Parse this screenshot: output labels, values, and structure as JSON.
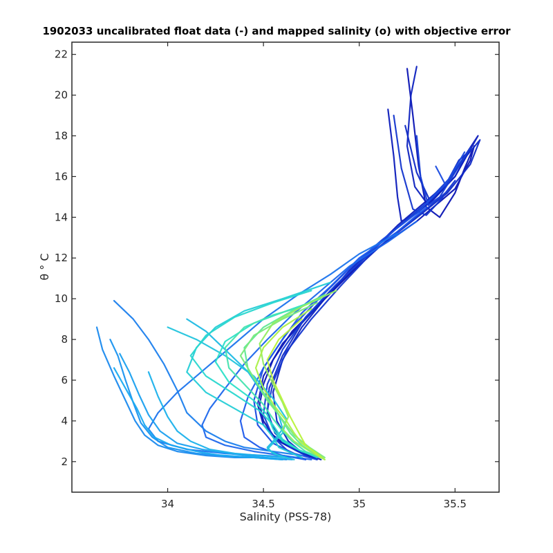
{
  "chart_data": {
    "type": "line",
    "title": "1902033 uncalibrated float data (-) and mapped salinity (o) with objective error",
    "xlabel": "Salinity (PSS-78)",
    "ylabel": "θ ° C",
    "xlim": [
      33.5,
      35.73
    ],
    "ylim": [
      0.5,
      22.6
    ],
    "xticks": [
      34,
      34.5,
      35,
      35.5
    ],
    "xtick_labels": [
      "34",
      "34.5",
      "35",
      "35.5"
    ],
    "yticks": [
      2,
      4,
      6,
      8,
      10,
      12,
      14,
      16,
      18,
      20,
      22
    ],
    "ytick_labels": [
      "2",
      "4",
      "6",
      "8",
      "10",
      "12",
      "14",
      "16",
      "18",
      "20",
      "22"
    ],
    "grid": false,
    "legend": "none",
    "colors": {
      "axis": "#262626",
      "early_profiles": "#0a14b4",
      "mid_profiles": "#1e78e6",
      "late_profiles": "#19aaf0",
      "cyan_profiles": "#2ce0e8",
      "final_profiles": "#b4f046"
    },
    "series": [
      {
        "group": 0.0,
        "x": [
          35.25,
          35.28,
          35.31,
          35.35,
          35.42,
          35.5,
          35.55,
          35.6,
          35.58,
          35.5,
          35.4,
          35.3,
          35.1,
          34.95,
          34.8,
          34.65,
          34.55,
          34.5,
          34.48,
          34.5,
          34.55,
          34.62,
          34.7,
          34.78
        ],
        "y": [
          21.3,
          19.0,
          16.5,
          14.5,
          14.0,
          15.2,
          16.4,
          17.5,
          16.8,
          15.4,
          14.6,
          13.8,
          12.5,
          11.2,
          9.8,
          8.4,
          7.0,
          5.8,
          4.8,
          4.0,
          3.3,
          2.8,
          2.4,
          2.1
        ]
      },
      {
        "group": 0.03,
        "x": [
          35.15,
          35.18,
          35.2,
          35.22,
          35.3,
          35.4,
          35.5,
          35.62,
          35.55,
          35.45,
          35.35,
          35.2,
          35.05,
          34.9,
          34.75,
          34.6,
          34.5,
          34.47,
          34.5,
          34.58,
          34.68,
          34.8
        ],
        "y": [
          19.3,
          17.0,
          15.0,
          13.8,
          14.2,
          15.0,
          16.0,
          18.0,
          17.0,
          15.6,
          14.8,
          13.6,
          12.2,
          10.8,
          9.3,
          7.8,
          6.2,
          4.8,
          3.8,
          3.0,
          2.5,
          2.1
        ]
      },
      {
        "group": 0.06,
        "x": [
          35.3,
          35.27,
          35.25,
          35.29,
          35.36,
          35.44,
          35.52,
          35.57,
          35.5,
          35.38,
          35.25,
          35.1,
          34.95,
          34.82,
          34.7,
          34.6,
          34.55,
          34.57,
          34.63,
          34.72
        ],
        "y": [
          21.4,
          20.0,
          17.5,
          15.5,
          14.6,
          15.4,
          16.8,
          17.2,
          16.0,
          14.9,
          13.9,
          12.7,
          11.4,
          10.0,
          8.6,
          7.0,
          5.4,
          4.0,
          3.0,
          2.3
        ]
      },
      {
        "group": 0.1,
        "x": [
          35.24,
          35.3,
          35.37,
          35.45,
          35.55,
          35.63,
          35.58,
          35.46,
          35.33,
          35.18,
          35.0,
          34.85,
          34.7,
          34.6,
          34.53,
          34.52,
          34.58,
          34.67,
          34.8
        ],
        "y": [
          18.5,
          16.2,
          14.8,
          15.6,
          16.9,
          17.8,
          16.6,
          15.2,
          14.2,
          13.1,
          11.8,
          10.4,
          8.8,
          7.2,
          5.6,
          4.3,
          3.2,
          2.6,
          2.2
        ]
      },
      {
        "group": 0.14,
        "x": [
          35.18,
          35.22,
          35.28,
          35.35,
          35.42,
          35.5,
          35.45,
          35.35,
          35.2,
          35.05,
          34.9,
          34.75,
          34.62,
          34.55,
          34.52,
          34.56,
          34.64,
          34.74
        ],
        "y": [
          19.0,
          16.4,
          14.4,
          14.1,
          14.8,
          15.8,
          15.2,
          14.4,
          13.3,
          12.1,
          10.6,
          9.0,
          7.4,
          5.9,
          4.5,
          3.4,
          2.7,
          2.2
        ]
      },
      {
        "group": 0.18,
        "x": [
          35.3,
          35.32,
          35.36,
          35.42,
          35.5,
          35.58,
          35.48,
          35.35,
          35.2,
          35.05,
          34.88,
          34.72,
          34.6,
          34.52,
          34.5,
          34.55,
          34.63,
          34.72
        ],
        "y": [
          18.0,
          16.0,
          14.6,
          15.0,
          16.2,
          17.4,
          16.0,
          14.7,
          13.5,
          12.2,
          10.7,
          9.1,
          7.5,
          5.8,
          4.3,
          3.2,
          2.5,
          2.1
        ]
      },
      {
        "group": 0.24,
        "x": [
          35.4,
          35.45,
          35.5,
          35.55,
          35.45,
          35.3,
          35.12,
          34.95,
          34.78,
          34.62,
          34.5,
          34.45,
          34.47,
          34.55,
          34.66,
          34.78
        ],
        "y": [
          16.5,
          15.6,
          16.4,
          17.2,
          15.6,
          14.2,
          12.9,
          11.5,
          9.9,
          8.3,
          6.6,
          5.0,
          3.8,
          2.9,
          2.4,
          2.1
        ]
      },
      {
        "group": 0.3,
        "x": [
          35.35,
          35.2,
          35.0,
          34.85,
          34.7,
          34.6,
          34.5,
          34.42,
          34.38,
          34.4,
          34.48,
          34.6,
          34.72
        ],
        "y": [
          14.5,
          13.3,
          12.0,
          10.6,
          9.3,
          8.0,
          6.6,
          5.2,
          4.0,
          3.2,
          2.7,
          2.3,
          2.1
        ]
      },
      {
        "group": 0.34,
        "x": [
          35.3,
          35.15,
          34.95,
          34.8,
          34.65,
          34.52,
          34.4,
          34.3,
          34.22,
          34.18,
          34.2,
          34.3,
          34.45,
          34.6,
          34.75
        ],
        "y": [
          13.8,
          12.8,
          11.6,
          10.4,
          9.2,
          8.0,
          6.8,
          5.6,
          4.6,
          3.8,
          3.2,
          2.8,
          2.5,
          2.3,
          2.1
        ]
      },
      {
        "group": 0.38,
        "x": [
          35.2,
          35.0,
          34.85,
          34.68,
          34.5,
          34.35,
          34.2,
          34.05,
          33.95,
          33.9,
          33.95,
          34.1,
          34.3,
          34.5,
          34.68
        ],
        "y": [
          13.2,
          12.2,
          11.2,
          10.2,
          9.0,
          7.8,
          6.6,
          5.4,
          4.4,
          3.6,
          3.0,
          2.6,
          2.4,
          2.3,
          2.2
        ]
      },
      {
        "group": 0.42,
        "x": [
          33.72,
          33.82,
          33.9,
          33.98,
          34.05,
          34.1,
          34.2,
          34.3,
          34.4,
          34.55,
          34.7
        ],
        "y": [
          9.9,
          9.0,
          8.0,
          6.8,
          5.5,
          4.4,
          3.5,
          3.0,
          2.7,
          2.5,
          2.3
        ]
      },
      {
        "group": 0.45,
        "x": [
          33.63,
          33.66,
          33.72,
          33.78,
          33.83,
          33.88,
          33.95,
          34.05,
          34.2,
          34.35,
          34.5,
          34.62
        ],
        "y": [
          8.6,
          7.5,
          6.2,
          5.0,
          4.0,
          3.3,
          2.8,
          2.5,
          2.3,
          2.2,
          2.2,
          2.1
        ]
      },
      {
        "group": 0.48,
        "x": [
          33.7,
          33.74,
          33.78,
          33.82,
          33.86,
          33.92,
          34.0,
          34.15,
          34.3,
          34.45,
          34.6
        ],
        "y": [
          8.0,
          7.2,
          6.0,
          4.9,
          3.9,
          3.2,
          2.7,
          2.4,
          2.3,
          2.2,
          2.1
        ]
      },
      {
        "group": 0.52,
        "x": [
          33.75,
          33.8,
          33.85,
          33.9,
          33.96,
          34.05,
          34.18,
          34.32,
          34.5,
          34.65
        ],
        "y": [
          7.3,
          6.4,
          5.3,
          4.3,
          3.5,
          2.9,
          2.6,
          2.4,
          2.2,
          2.1
        ]
      },
      {
        "group": 0.55,
        "x": [
          33.72,
          33.78,
          33.84,
          33.88,
          33.93,
          34.02,
          34.15,
          34.28,
          34.45,
          34.6
        ],
        "y": [
          6.6,
          5.6,
          4.6,
          3.8,
          3.2,
          2.8,
          2.5,
          2.3,
          2.2,
          2.1
        ]
      },
      {
        "group": 0.58,
        "x": [
          33.9,
          33.95,
          34.0,
          34.05,
          34.12,
          34.22,
          34.35,
          34.48,
          34.62
        ],
        "y": [
          6.4,
          5.2,
          4.2,
          3.5,
          3.0,
          2.6,
          2.4,
          2.3,
          2.2
        ]
      },
      {
        "group": 0.62,
        "x": [
          34.1,
          34.2,
          34.3,
          34.42,
          34.5,
          34.58,
          34.6,
          34.56,
          34.52,
          34.55,
          34.62
        ],
        "y": [
          9.0,
          8.4,
          7.5,
          6.4,
          5.3,
          4.3,
          3.6,
          3.1,
          2.7,
          2.4,
          2.2
        ]
      },
      {
        "group": 0.66,
        "x": [
          34.0,
          34.15,
          34.3,
          34.45,
          34.55,
          34.62,
          34.6,
          34.55,
          34.52,
          34.58,
          34.66
        ],
        "y": [
          8.6,
          8.0,
          7.2,
          6.2,
          5.1,
          4.1,
          3.4,
          2.9,
          2.6,
          2.3,
          2.1
        ]
      },
      {
        "group": 0.7,
        "x": [
          34.85,
          34.6,
          34.4,
          34.25,
          34.15,
          34.1,
          34.2,
          34.35,
          34.5,
          34.55,
          34.58,
          34.7
        ],
        "y": [
          10.8,
          10.0,
          9.4,
          8.6,
          7.6,
          6.4,
          5.4,
          4.6,
          3.8,
          3.2,
          2.7,
          2.2
        ]
      },
      {
        "group": 0.74,
        "x": [
          34.75,
          34.55,
          34.35,
          34.2,
          34.12,
          34.2,
          34.35,
          34.48,
          34.55,
          34.6,
          34.68,
          34.78
        ],
        "y": [
          10.4,
          9.8,
          9.1,
          8.2,
          7.2,
          6.2,
          5.3,
          4.5,
          3.8,
          3.1,
          2.6,
          2.2
        ]
      },
      {
        "group": 0.78,
        "x": [
          34.8,
          34.62,
          34.45,
          34.3,
          34.25,
          34.32,
          34.45,
          34.52,
          34.55,
          34.6,
          34.7,
          34.8
        ],
        "y": [
          10.0,
          9.4,
          8.8,
          7.9,
          6.9,
          5.9,
          5.0,
          4.3,
          3.6,
          3.0,
          2.5,
          2.2
        ]
      },
      {
        "group": 0.82,
        "x": [
          34.7,
          34.55,
          34.4,
          34.3,
          34.32,
          34.42,
          34.5,
          34.55,
          34.6,
          34.65,
          34.72,
          34.8
        ],
        "y": [
          9.6,
          9.2,
          8.6,
          7.6,
          6.6,
          5.6,
          4.8,
          4.1,
          3.5,
          3.0,
          2.5,
          2.2
        ]
      },
      {
        "group": 0.86,
        "x": [
          34.82,
          34.65,
          34.5,
          34.4,
          34.42,
          34.5,
          34.56,
          34.6,
          34.64,
          34.7,
          34.78
        ],
        "y": [
          10.2,
          9.4,
          8.6,
          7.6,
          6.5,
          5.4,
          4.6,
          4.0,
          3.4,
          2.8,
          2.3
        ]
      },
      {
        "group": 0.9,
        "x": [
          34.78,
          34.6,
          34.45,
          34.38,
          34.45,
          34.52,
          34.58,
          34.62,
          34.66,
          34.74,
          34.82
        ],
        "y": [
          9.8,
          9.0,
          8.2,
          7.2,
          6.1,
          5.0,
          4.3,
          3.8,
          3.3,
          2.7,
          2.2
        ]
      },
      {
        "group": 0.94,
        "x": [
          34.88,
          34.7,
          34.55,
          34.48,
          34.5,
          34.55,
          34.6,
          34.63,
          34.6,
          34.66,
          34.76,
          34.82
        ],
        "y": [
          10.4,
          9.6,
          8.8,
          7.8,
          6.8,
          5.8,
          4.9,
          4.2,
          3.6,
          3.0,
          2.4,
          2.1
        ]
      },
      {
        "group": 0.98,
        "x": [
          34.75,
          34.6,
          34.5,
          34.46,
          34.5,
          34.56,
          34.62,
          34.66,
          34.7,
          34.78,
          34.82
        ],
        "y": [
          9.5,
          8.6,
          7.6,
          6.6,
          5.6,
          4.7,
          4.0,
          3.4,
          2.9,
          2.4,
          2.1
        ]
      },
      {
        "group": 1.0,
        "x": [
          34.7,
          34.58,
          34.52,
          34.55,
          34.6,
          34.64,
          34.68,
          34.72,
          34.8
        ],
        "y": [
          9.0,
          8.0,
          7.0,
          6.0,
          5.0,
          4.2,
          3.5,
          2.8,
          2.2
        ]
      }
    ]
  }
}
